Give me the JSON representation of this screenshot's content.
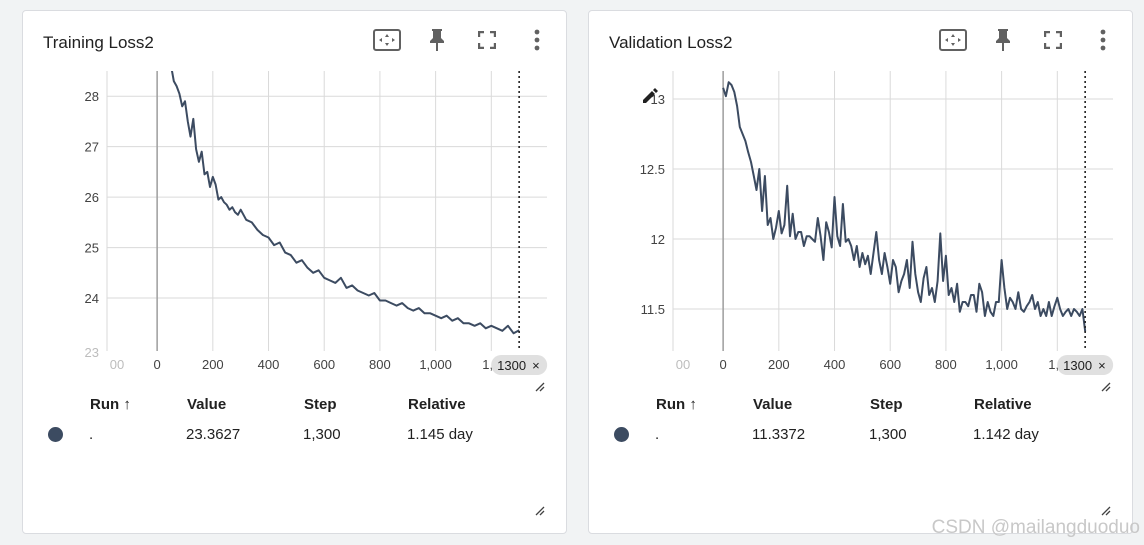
{
  "colors": {
    "line": "#3c4b61",
    "grid": "#dadada",
    "axis": "#9e9e9e",
    "dot": "#3c4b61"
  },
  "icons": [
    "fit-domain-icon",
    "pin-icon",
    "fullscreen-icon",
    "more-vert-icon",
    "resize-handle-icon",
    "pencil-icon",
    "close-icon",
    "sort-arrow-up-icon"
  ],
  "table_headers": {
    "run": "Run ↑",
    "value": "Value",
    "step": "Step",
    "relative": "Relative"
  },
  "cards": [
    {
      "title": "Training Loss2",
      "row": {
        "run": ".",
        "value": "23.3627",
        "step": "1,300",
        "relative": "1.145 day"
      },
      "badge": {
        "label": "1300",
        "close": "×"
      }
    },
    {
      "title": "Validation Loss2",
      "row": {
        "run": ".",
        "value": "11.3372",
        "step": "1,300",
        "relative": "1.142 day"
      },
      "badge": {
        "label": "1300",
        "close": "×"
      }
    }
  ],
  "watermark": "CSDN @mailangduoduo",
  "chart_data": [
    {
      "type": "line",
      "title": "Training Loss2",
      "xlabel": "",
      "ylabel": "",
      "xlim": [
        -180,
        1400
      ],
      "ylim": [
        22.95,
        28.5
      ],
      "x_ticks": [
        0,
        200,
        400,
        600,
        800,
        1000
      ],
      "x_tick_labels": [
        "0",
        "200",
        "400",
        "600",
        "800",
        "1,000"
      ],
      "x_tick_partial": {
        "value": 1200,
        "label": "1,2"
      },
      "x_tick_faded": {
        "value": -180,
        "label": "00"
      },
      "y_ticks": [
        24,
        25,
        26,
        27,
        28
      ],
      "y_tick_faded": {
        "value": 23,
        "label": "23"
      },
      "marker_step": 1300,
      "series": [
        {
          "name": ".",
          "x": [
            50,
            60,
            70,
            80,
            90,
            100,
            110,
            120,
            130,
            140,
            150,
            160,
            170,
            180,
            190,
            200,
            210,
            220,
            230,
            240,
            250,
            260,
            270,
            280,
            290,
            300,
            320,
            340,
            360,
            380,
            400,
            420,
            440,
            460,
            480,
            500,
            520,
            540,
            560,
            580,
            600,
            620,
            640,
            660,
            680,
            700,
            720,
            740,
            760,
            780,
            800,
            820,
            840,
            860,
            880,
            900,
            920,
            940,
            960,
            980,
            1000,
            1020,
            1040,
            1060,
            1080,
            1100,
            1120,
            1140,
            1160,
            1180,
            1200,
            1220,
            1240,
            1260,
            1280,
            1300
          ],
          "y": [
            28.6,
            28.3,
            28.2,
            28.05,
            27.8,
            27.9,
            27.5,
            27.2,
            27.55,
            26.95,
            26.7,
            26.9,
            26.45,
            26.5,
            26.2,
            26.4,
            26.25,
            25.95,
            26.0,
            25.9,
            25.85,
            25.75,
            25.8,
            25.7,
            25.65,
            25.75,
            25.55,
            25.5,
            25.35,
            25.25,
            25.2,
            25.05,
            25.1,
            24.9,
            24.85,
            24.7,
            24.75,
            24.6,
            24.5,
            24.55,
            24.4,
            24.35,
            24.3,
            24.4,
            24.2,
            24.25,
            24.15,
            24.1,
            24.05,
            24.1,
            23.95,
            23.95,
            23.9,
            23.85,
            23.9,
            23.8,
            23.75,
            23.8,
            23.7,
            23.7,
            23.65,
            23.6,
            23.65,
            23.55,
            23.6,
            23.5,
            23.5,
            23.45,
            23.5,
            23.4,
            23.45,
            23.4,
            23.35,
            23.45,
            23.3,
            23.36
          ]
        }
      ]
    },
    {
      "type": "line",
      "title": "Validation Loss2",
      "xlabel": "",
      "ylabel": "",
      "xlim": [
        -180,
        1400
      ],
      "ylim": [
        11.2,
        13.2
      ],
      "x_ticks": [
        0,
        200,
        400,
        600,
        800,
        1000
      ],
      "x_tick_labels": [
        "0",
        "200",
        "400",
        "600",
        "800",
        "1,000"
      ],
      "x_tick_partial": {
        "value": 1200,
        "label": "1,2"
      },
      "x_tick_faded": {
        "value": -180,
        "label": "00"
      },
      "y_ticks": [
        11.5,
        12,
        12.5,
        13
      ],
      "y_tick_labels": [
        "11.5",
        "12",
        "12.5",
        "13"
      ],
      "marker_step": 1300,
      "series": [
        {
          "name": ".",
          "x": [
            0,
            10,
            20,
            30,
            40,
            50,
            60,
            70,
            80,
            90,
            100,
            110,
            120,
            130,
            140,
            150,
            160,
            170,
            180,
            190,
            200,
            210,
            220,
            230,
            240,
            250,
            260,
            270,
            280,
            290,
            300,
            310,
            320,
            330,
            340,
            350,
            360,
            370,
            380,
            390,
            400,
            410,
            420,
            430,
            440,
            450,
            460,
            470,
            480,
            490,
            500,
            510,
            520,
            530,
            540,
            550,
            560,
            570,
            580,
            590,
            600,
            610,
            620,
            630,
            640,
            650,
            660,
            670,
            680,
            690,
            700,
            710,
            720,
            730,
            740,
            750,
            760,
            770,
            780,
            790,
            800,
            810,
            820,
            830,
            840,
            850,
            860,
            870,
            880,
            890,
            900,
            910,
            920,
            930,
            940,
            950,
            960,
            970,
            980,
            990,
            1000,
            1010,
            1020,
            1030,
            1040,
            1050,
            1060,
            1070,
            1080,
            1090,
            1100,
            1110,
            1120,
            1130,
            1140,
            1150,
            1160,
            1170,
            1180,
            1190,
            1200,
            1210,
            1220,
            1230,
            1240,
            1250,
            1260,
            1270,
            1280,
            1290,
            1300
          ],
          "y": [
            13.08,
            13.02,
            13.12,
            13.1,
            13.05,
            12.95,
            12.8,
            12.75,
            12.7,
            12.62,
            12.55,
            12.45,
            12.35,
            12.5,
            12.2,
            12.45,
            12.1,
            12.15,
            12.0,
            12.08,
            12.2,
            12.04,
            12.1,
            12.38,
            12.02,
            12.18,
            12.0,
            12.05,
            12.05,
            11.95,
            12.02,
            12.02,
            12.0,
            11.98,
            12.15,
            12.02,
            11.85,
            12.12,
            12.05,
            11.94,
            12.3,
            12.02,
            11.95,
            12.25,
            11.98,
            12.0,
            11.95,
            11.85,
            11.95,
            11.8,
            11.9,
            11.82,
            11.88,
            11.75,
            11.9,
            12.05,
            11.85,
            11.75,
            11.9,
            11.8,
            11.68,
            11.85,
            11.8,
            11.62,
            11.7,
            11.75,
            11.85,
            11.65,
            11.98,
            11.75,
            11.62,
            11.55,
            11.72,
            11.8,
            11.6,
            11.65,
            11.55,
            11.7,
            12.04,
            11.7,
            11.88,
            11.6,
            11.65,
            11.55,
            11.68,
            11.48,
            11.55,
            11.55,
            11.52,
            11.6,
            11.6,
            11.48,
            11.68,
            11.62,
            11.45,
            11.55,
            11.48,
            11.45,
            11.55,
            11.55,
            11.85,
            11.65,
            11.5,
            11.58,
            11.55,
            11.5,
            11.62,
            11.5,
            11.48,
            11.52,
            11.55,
            11.6,
            11.5,
            11.55,
            11.45,
            11.5,
            11.45,
            11.55,
            11.45,
            11.52,
            11.58,
            11.5,
            11.45,
            11.48,
            11.5,
            11.45,
            11.5,
            11.48,
            11.45,
            11.5,
            11.34
          ]
        }
      ]
    }
  ]
}
